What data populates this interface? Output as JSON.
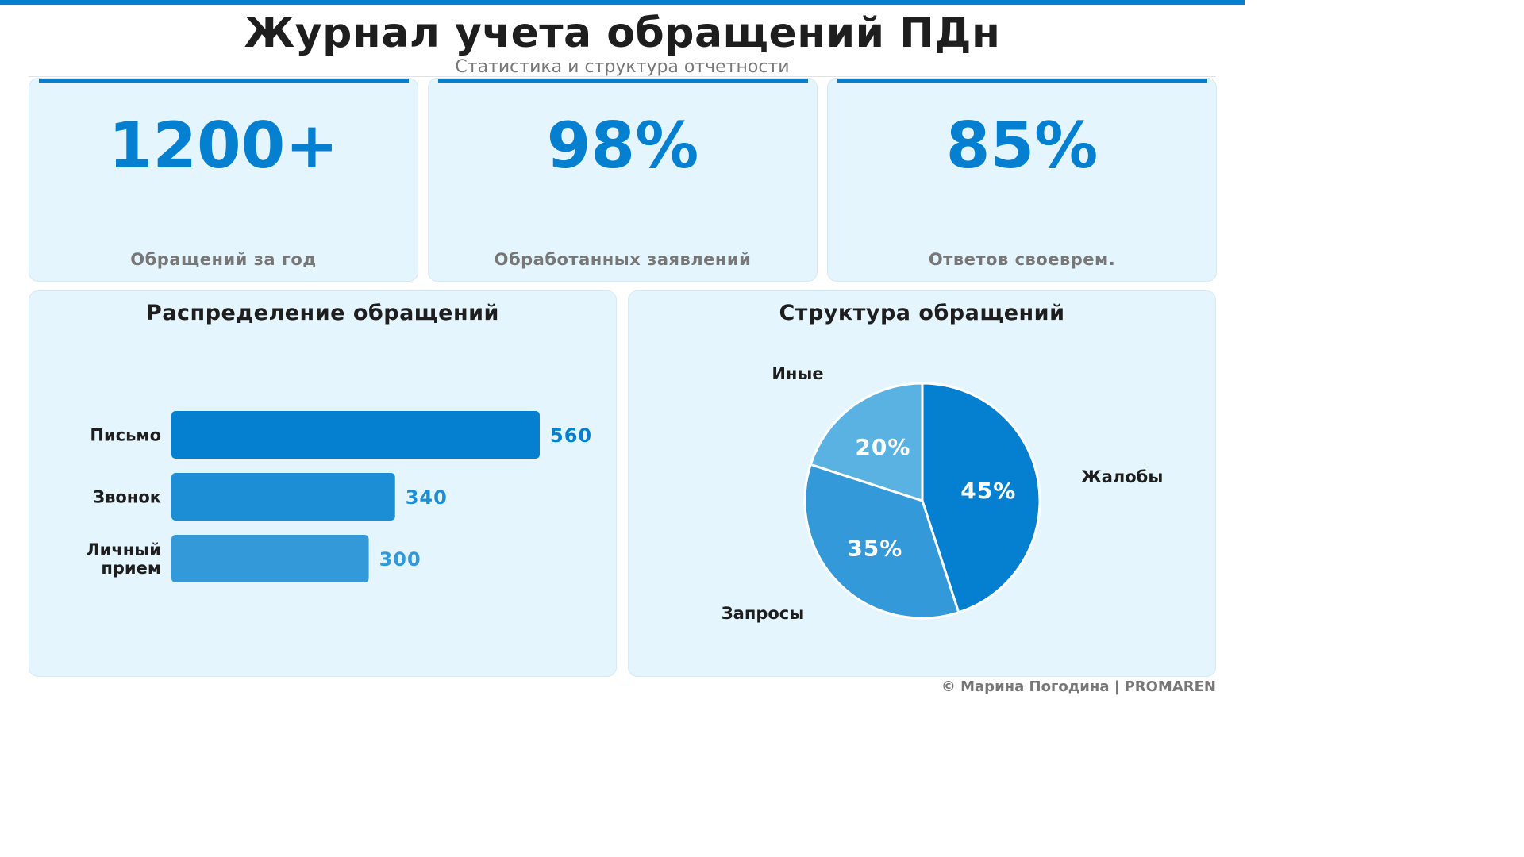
{
  "header": {
    "title": "Журнал учета обращений ПДн",
    "subtitle": "Статистика и структура отчетности"
  },
  "kpis": [
    {
      "value": "1200+",
      "label": "Обращений за год"
    },
    {
      "value": "98%",
      "label": "Обработанных заявлений"
    },
    {
      "value": "85%",
      "label": "Ответов своеврем."
    }
  ],
  "colors": {
    "accent": "#0580d0",
    "card_bg": "#e4f5fd",
    "text_dark": "#1e1e1e",
    "text_muted": "#777777"
  },
  "chart_data": [
    {
      "type": "bar",
      "orientation": "horizontal",
      "title": "Распределение обращений",
      "categories": [
        "Письмо",
        "Звонок",
        "Личный прием"
      ],
      "values": [
        560,
        340,
        300
      ],
      "colors": [
        "#0580d0",
        "#1b8ed6",
        "#3399d9"
      ],
      "data_labels": [
        "560",
        "340",
        "300"
      ],
      "grid": false
    },
    {
      "type": "pie",
      "title": "Структура обращений",
      "labels": [
        "Жалобы",
        "Запросы",
        "Иные"
      ],
      "values": [
        45,
        35,
        20
      ],
      "data_labels": [
        "45%",
        "35%",
        "20%"
      ],
      "colors": [
        "#0580d0",
        "#3399d9",
        "#5ab2e2"
      ]
    }
  ],
  "footer": {
    "text": "© Марина Погодина | PROMAREN"
  }
}
